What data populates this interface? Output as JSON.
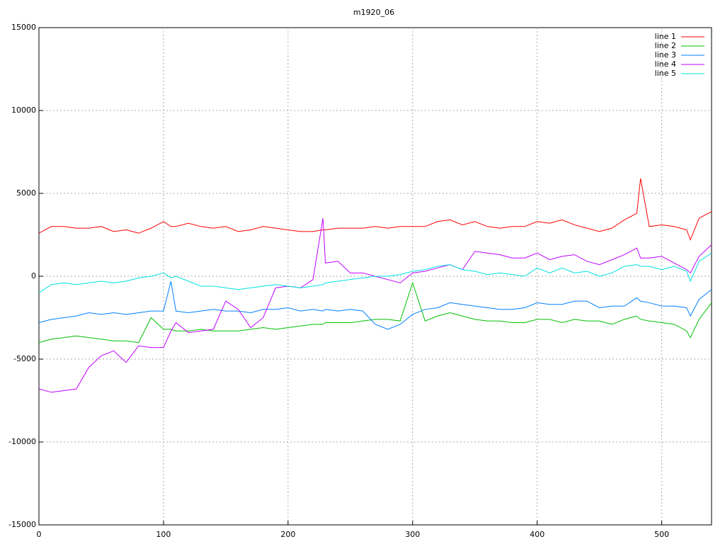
{
  "chart_data": {
    "type": "line",
    "title": "m1920_06",
    "x": [
      0,
      10,
      20,
      30,
      40,
      50,
      60,
      70,
      80,
      90,
      100,
      106,
      110,
      120,
      130,
      140,
      150,
      160,
      170,
      180,
      190,
      200,
      210,
      220,
      228,
      230,
      240,
      250,
      260,
      270,
      280,
      290,
      300,
      310,
      320,
      330,
      340,
      350,
      360,
      370,
      380,
      390,
      400,
      410,
      420,
      430,
      440,
      450,
      460,
      470,
      480,
      483,
      490,
      500,
      510,
      520,
      523,
      530,
      540
    ],
    "series": [
      {
        "name": "line 1",
        "color": "#ff0000",
        "values": [
          2600,
          3000,
          3000,
          2900,
          2900,
          3000,
          2700,
          2800,
          2600,
          2900,
          3300,
          3000,
          3000,
          3200,
          3000,
          2900,
          3000,
          2700,
          2800,
          3000,
          2900,
          2800,
          2700,
          2700,
          2800,
          2800,
          2900,
          2900,
          2900,
          3000,
          2900,
          3000,
          3000,
          3000,
          3300,
          3400,
          3100,
          3300,
          3000,
          2900,
          3000,
          3000,
          3300,
          3200,
          3400,
          3100,
          2900,
          2700,
          2900,
          3400,
          3800,
          5900,
          3000,
          3100,
          3000,
          2800,
          2200,
          3500,
          3900
        ]
      },
      {
        "name": "line 2",
        "color": "#00c000",
        "values": [
          -4000,
          -3800,
          -3700,
          -3600,
          -3700,
          -3800,
          -3900,
          -3900,
          -4000,
          -2500,
          -3200,
          -3200,
          -3300,
          -3300,
          -3200,
          -3300,
          -3300,
          -3300,
          -3200,
          -3100,
          -3200,
          -3100,
          -3000,
          -2900,
          -2900,
          -2800,
          -2800,
          -2800,
          -2700,
          -2600,
          -2600,
          -2700,
          -400,
          -2700,
          -2400,
          -2200,
          -2400,
          -2600,
          -2700,
          -2700,
          -2800,
          -2800,
          -2600,
          -2600,
          -2800,
          -2600,
          -2700,
          -2700,
          -2900,
          -2600,
          -2400,
          -2600,
          -2700,
          -2800,
          -2900,
          -3300,
          -3700,
          -2600,
          -1600
        ]
      },
      {
        "name": "line 3",
        "color": "#0080ff",
        "values": [
          -2800,
          -2600,
          -2500,
          -2400,
          -2200,
          -2300,
          -2200,
          -2300,
          -2200,
          -2100,
          -2100,
          -300,
          -2100,
          -2200,
          -2100,
          -2000,
          -2100,
          -2100,
          -2200,
          -2000,
          -2000,
          -1900,
          -2100,
          -2000,
          -2100,
          -2000,
          -2100,
          -2000,
          -2100,
          -2900,
          -3200,
          -2900,
          -2300,
          -2000,
          -1900,
          -1600,
          -1700,
          -1800,
          -1900,
          -2000,
          -2000,
          -1900,
          -1600,
          -1700,
          -1700,
          -1500,
          -1500,
          -1900,
          -1800,
          -1800,
          -1300,
          -1500,
          -1600,
          -1800,
          -1800,
          -1900,
          -2400,
          -1400,
          -800
        ]
      },
      {
        "name": "line 4",
        "color": "#c000ff",
        "values": [
          -6800,
          -7000,
          -6900,
          -6800,
          -5500,
          -4800,
          -4500,
          -5200,
          -4200,
          -4300,
          -4300,
          -3300,
          -2800,
          -3400,
          -3300,
          -3200,
          -1500,
          -2000,
          -3100,
          -2500,
          -700,
          -600,
          -700,
          -200,
          3500,
          800,
          900,
          200,
          200,
          0,
          -200,
          -400,
          200,
          300,
          500,
          700,
          400,
          1500,
          1400,
          1300,
          1100,
          1100,
          1400,
          1000,
          1200,
          1300,
          900,
          700,
          1000,
          1300,
          1700,
          1100,
          1100,
          1200,
          800,
          400,
          200,
          1200,
          1900
        ]
      },
      {
        "name": "line 5",
        "color": "#00e0e0",
        "values": [
          -1000,
          -500,
          -400,
          -500,
          -400,
          -300,
          -400,
          -300,
          -100,
          0,
          200,
          -100,
          0,
          -300,
          -600,
          -600,
          -700,
          -800,
          -700,
          -600,
          -500,
          -600,
          -700,
          -600,
          -500,
          -400,
          -300,
          -200,
          -100,
          0,
          0,
          100,
          300,
          400,
          600,
          700,
          400,
          300,
          100,
          200,
          100,
          0,
          500,
          200,
          500,
          200,
          300,
          0,
          200,
          600,
          700,
          600,
          600,
          400,
          600,
          300,
          -300,
          900,
          1400
        ]
      }
    ],
    "xlim": [
      0,
      540
    ],
    "xticks": [
      0,
      100,
      200,
      300,
      400,
      500
    ],
    "ylim": [
      -15000,
      15000
    ],
    "yticks": [
      -15000,
      -10000,
      -5000,
      0,
      5000,
      10000,
      15000
    ],
    "grid": true,
    "legend": "top-right"
  }
}
